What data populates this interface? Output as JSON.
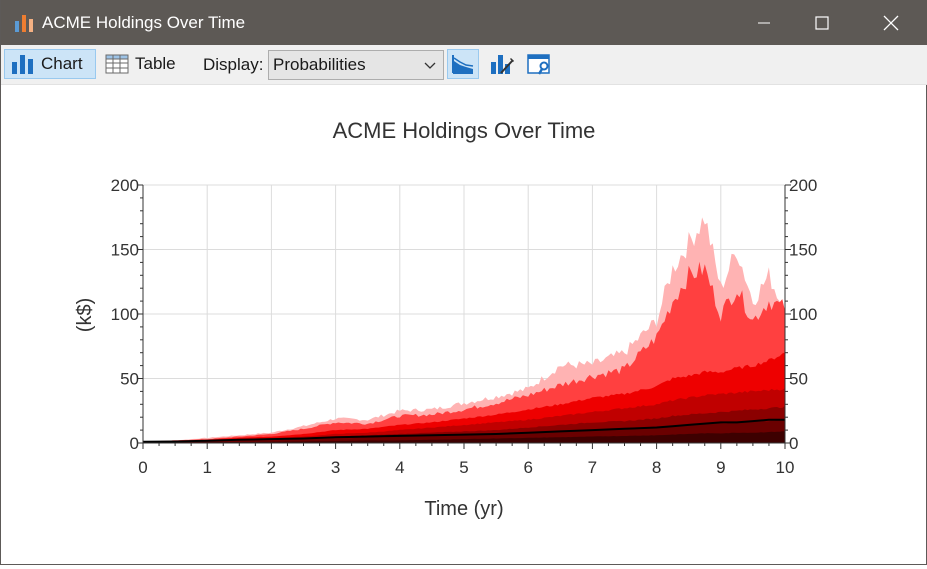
{
  "window": {
    "title": "ACME Holdings Over Time",
    "icons": {
      "app": "bar-chart-app-icon",
      "minimize": "minimize-icon",
      "maximize": "maximize-icon",
      "close": "close-icon"
    }
  },
  "toolbar": {
    "chart_label": "Chart",
    "table_label": "Table",
    "display_label": "Display:",
    "display_value": "Probabilities",
    "icons": [
      "chart-type-icon",
      "chart-edit-icon",
      "chart-properties-icon"
    ]
  },
  "colors": {
    "band_outer": "#ffb3b3",
    "band_2": "#ff4040",
    "band_3": "#ee0000",
    "band_4": "#c00000",
    "band_5": "#8b0000",
    "median": "#000000",
    "active_button": "#cce4f7"
  },
  "chart_data": {
    "type": "area",
    "title": "ACME Holdings Over Time",
    "xlabel": "Time (yr)",
    "ylabel": "(k$)",
    "xlim": [
      0,
      10
    ],
    "ylim": [
      0,
      200
    ],
    "x_ticks": [
      "0",
      "1",
      "2",
      "3",
      "4",
      "5",
      "6",
      "7",
      "8",
      "9",
      "10"
    ],
    "y_ticks": [
      "0",
      "50",
      "100",
      "150",
      "200"
    ],
    "y_ticks_right": [
      "0",
      "50",
      "100",
      "150",
      "200"
    ],
    "grid": true,
    "x": [
      0,
      0.5,
      1,
      1.5,
      2,
      2.5,
      3,
      3.5,
      4,
      4.5,
      5,
      5.5,
      6,
      6.5,
      7,
      7.5,
      8,
      8.25,
      8.5,
      8.75,
      9,
      9.25,
      9.5,
      9.75,
      10
    ],
    "series": [
      {
        "name": "",
        "values": [
          1,
          2,
          4,
          6,
          8,
          13,
          19,
          18,
          25,
          26,
          31,
          36,
          42,
          60,
          61,
          70,
          95,
          135,
          155,
          175,
          120,
          150,
          110,
          130,
          102
        ]
      },
      {
        "name": "",
        "values": [
          1,
          2,
          3,
          5,
          7,
          11,
          16,
          15,
          21,
          22,
          26,
          31,
          37,
          45,
          52,
          57,
          82,
          110,
          130,
          135,
          100,
          120,
          95,
          110,
          105
        ]
      },
      {
        "name": "",
        "values": [
          1,
          1.5,
          2.5,
          4,
          5,
          7,
          10,
          11,
          14,
          16,
          19,
          22,
          26,
          30,
          35,
          38,
          44,
          50,
          52,
          55,
          55,
          58,
          60,
          64,
          70
        ]
      },
      {
        "name": "",
        "values": [
          0.8,
          1.2,
          2,
          3,
          4,
          5,
          7,
          8,
          10,
          12,
          14,
          16,
          18,
          21,
          24,
          27,
          30,
          33,
          35,
          37,
          38,
          39,
          40,
          41,
          42
        ]
      },
      {
        "name": "",
        "values": [
          0.5,
          1,
          1.5,
          2,
          3,
          4,
          5,
          6,
          7,
          8,
          9,
          10,
          12,
          14,
          16,
          17,
          19,
          21,
          22,
          23,
          24,
          25,
          26,
          27,
          28
        ]
      },
      {
        "name": "",
        "values": [
          0.4,
          0.8,
          1.2,
          1.6,
          2,
          3,
          3.5,
          4,
          5,
          5.5,
          6,
          7,
          8,
          9,
          10,
          11,
          12,
          13,
          14,
          15,
          15,
          16,
          17,
          17,
          18
        ]
      },
      {
        "name": "",
        "values": [
          0.2,
          0.4,
          0.6,
          0.8,
          1,
          1.2,
          1.5,
          2,
          2,
          2.5,
          3,
          3.5,
          4,
          4.5,
          5,
          5.5,
          6,
          6.5,
          7,
          7.5,
          7.5,
          8,
          8,
          8.5,
          9
        ]
      }
    ],
    "median": [
      1,
      1.2,
      1.8,
      2.5,
      3,
      3.5,
      4.5,
      5,
      5.5,
      6,
      6.5,
      7,
      8,
      9,
      10,
      11,
      12,
      13,
      14,
      15,
      16,
      16,
      17,
      18,
      18
    ]
  }
}
